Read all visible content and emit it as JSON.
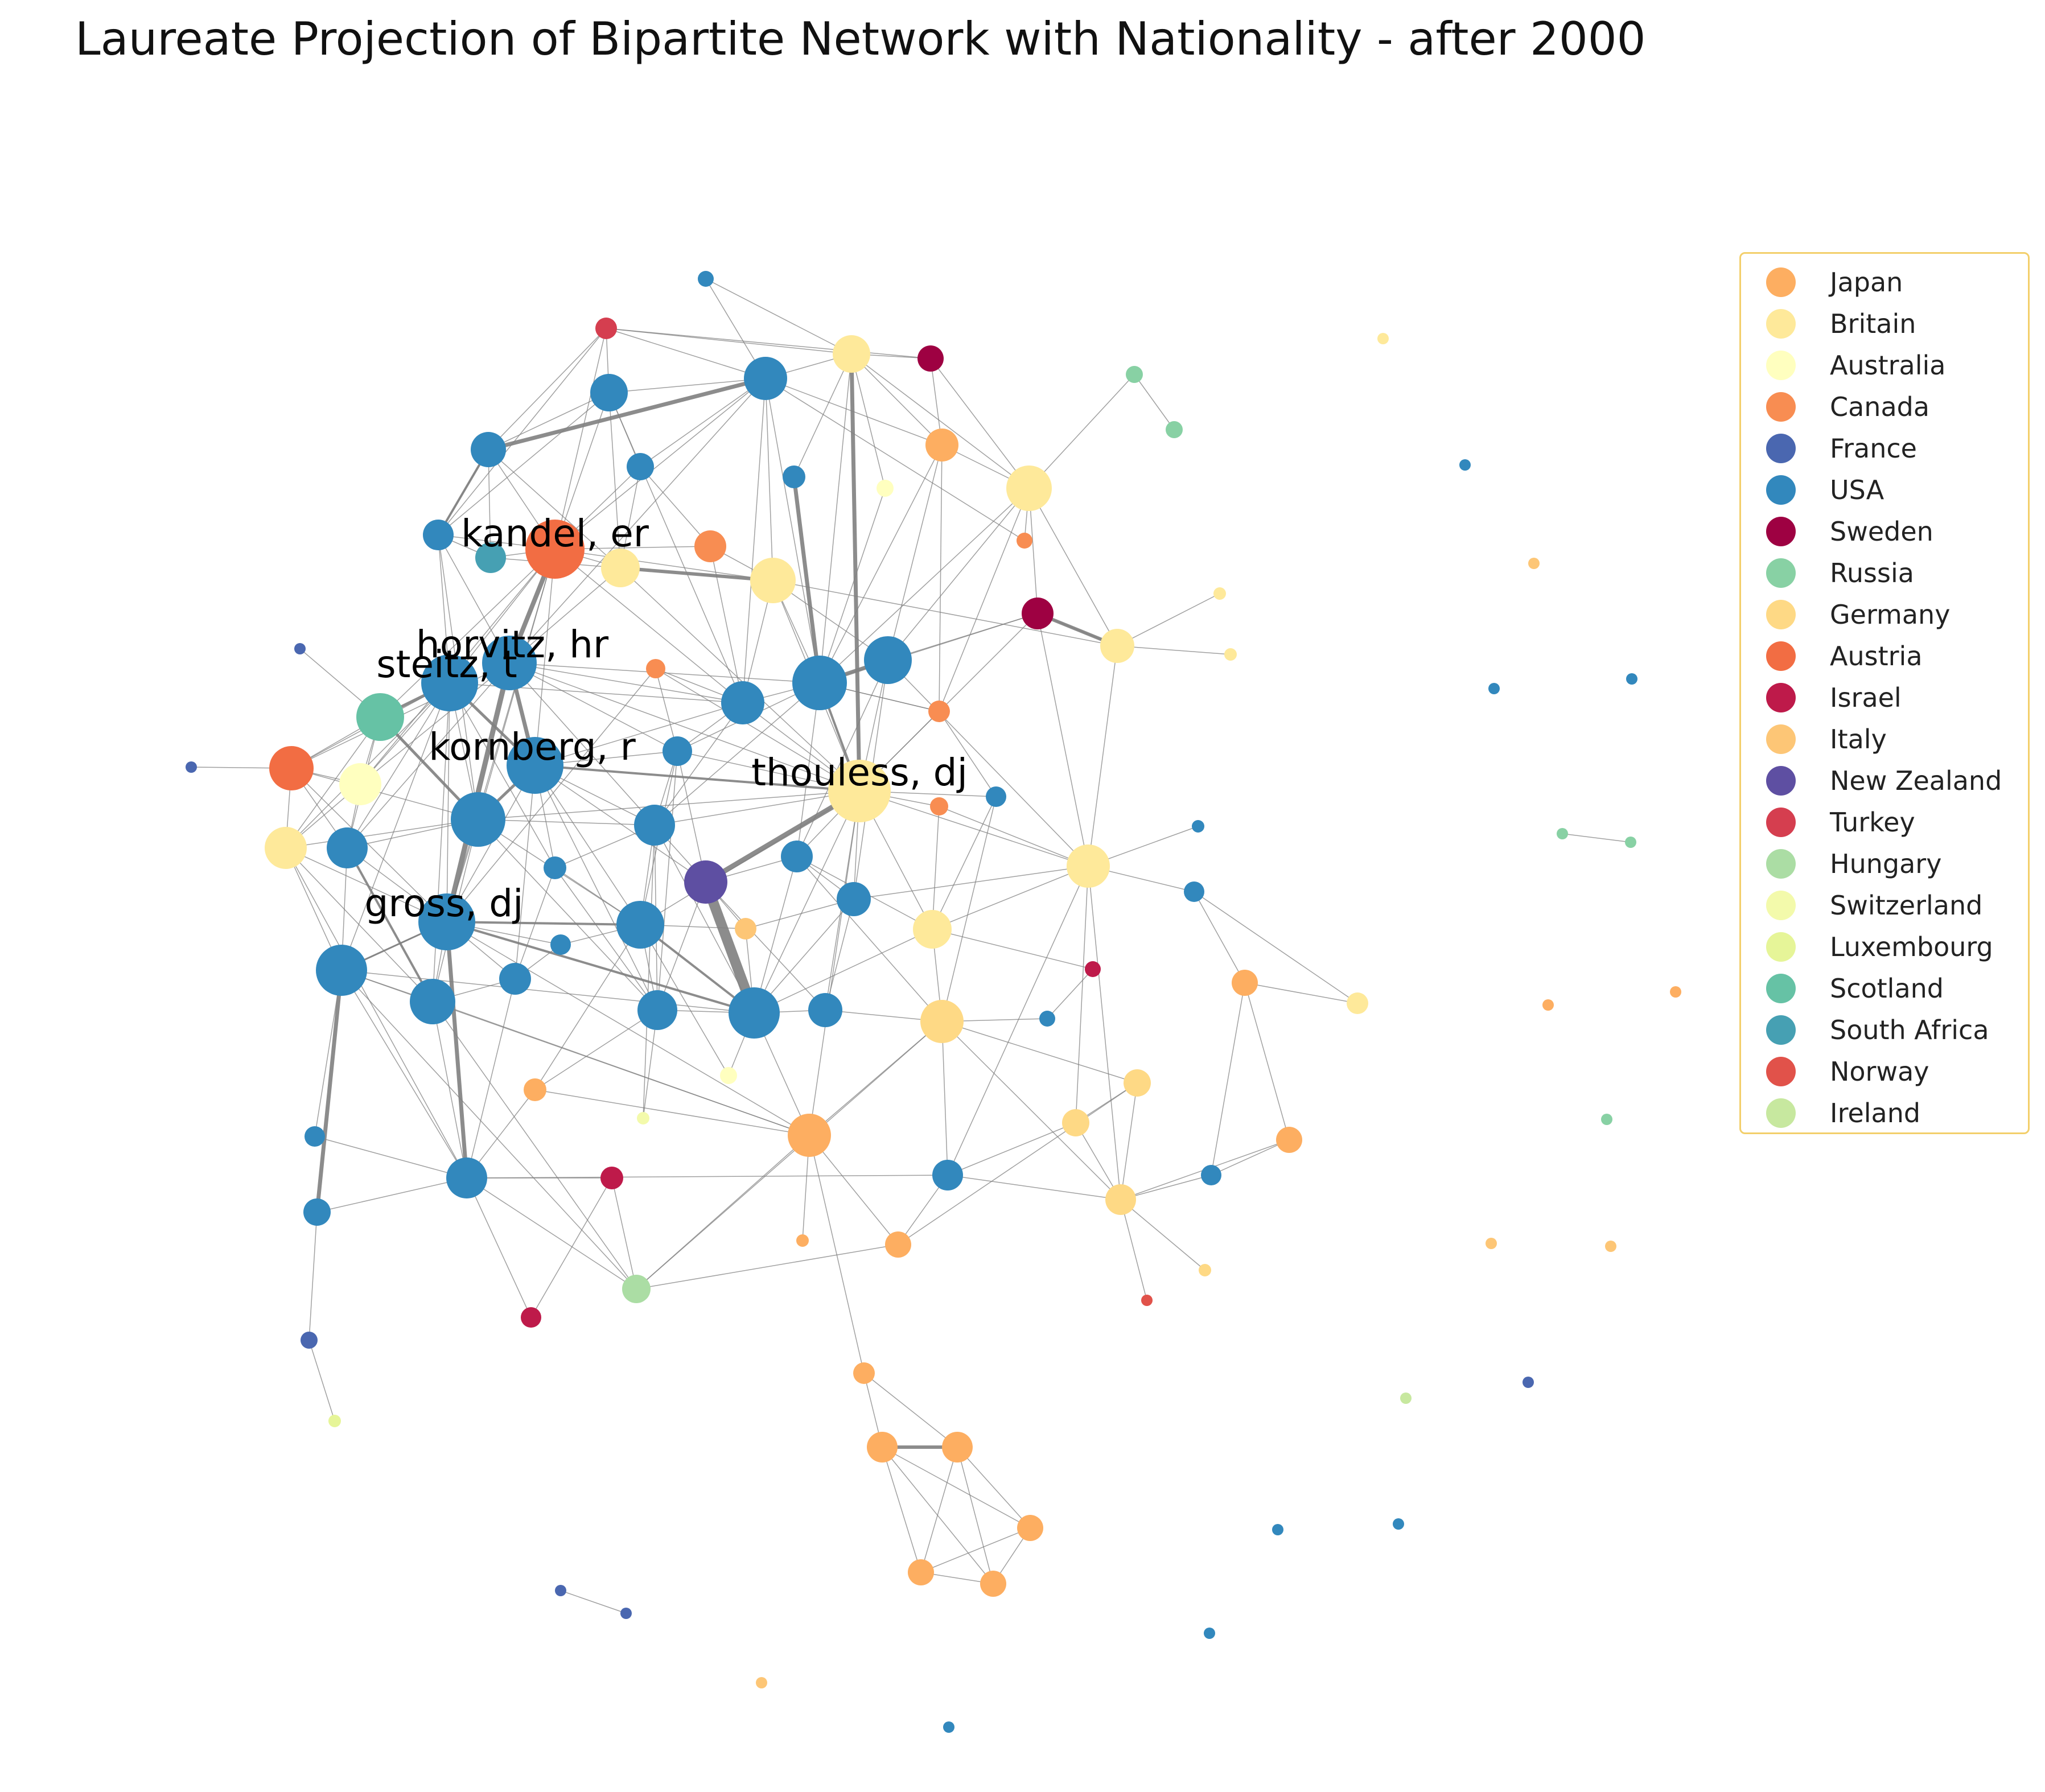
{
  "title": "Laureate Projection of Bipartite Network with Nationality - after 2000",
  "legend": {
    "position": "upper right",
    "items": [
      {
        "label": "Japan",
        "color": "#fdae61"
      },
      {
        "label": "Britain",
        "color": "#fee99a"
      },
      {
        "label": "Australia",
        "color": "#ffffbf"
      },
      {
        "label": "Canada",
        "color": "#f88d52"
      },
      {
        "label": "France",
        "color": "#4a67b0"
      },
      {
        "label": "USA",
        "color": "#3288bd"
      },
      {
        "label": "Sweden",
        "color": "#9e0142"
      },
      {
        "label": "Russia",
        "color": "#88d1a4"
      },
      {
        "label": "Germany",
        "color": "#fed985"
      },
      {
        "label": "Austria",
        "color": "#f26d43"
      },
      {
        "label": "Israel",
        "color": "#be1a4a"
      },
      {
        "label": "Italy",
        "color": "#fdc676"
      },
      {
        "label": "New Zealand",
        "color": "#5e4fa2"
      },
      {
        "label": "Turkey",
        "color": "#d53e4f"
      },
      {
        "label": "Hungary",
        "color": "#abdda4"
      },
      {
        "label": "Switzerland",
        "color": "#f3faab"
      },
      {
        "label": "Luxembourg",
        "color": "#e6f598"
      },
      {
        "label": "Scotland",
        "color": "#66c2a5"
      },
      {
        "label": "South Africa",
        "color": "#46a0b3"
      },
      {
        "label": "Norway",
        "color": "#e1524a"
      },
      {
        "label": "Ireland",
        "color": "#c7e89f"
      }
    ]
  },
  "node_labels": [
    "kandel, er",
    "horvitz, hr",
    "steitz, t",
    "kornberg, r",
    "thouless, dj",
    "gross, dj"
  ],
  "edge_color": "#808080"
}
